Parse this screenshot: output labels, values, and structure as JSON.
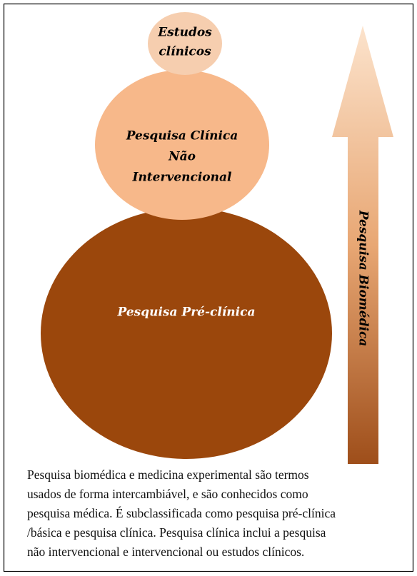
{
  "nodes": [
    {
      "label": [
        "Estudos",
        "clínicos"
      ]
    },
    {
      "label": [
        "Pesquisa Clínica",
        "Não",
        "Intervencional"
      ]
    },
    {
      "label": [
        "Pesquisa Pré-clínica"
      ]
    }
  ],
  "arrow": {
    "label": "Pesquisa Biomédica"
  },
  "caption": [
    "Pesquisa biomédica e medicina experimental são termos",
    "usados de forma intercambiável, e são conhecidos como",
    "pesquisa médica. É subclassificada como pesquisa pré-clínica",
    "/básica e pesquisa clínica. Pesquisa clínica inclui a pesquisa",
    "não intervencional e intervencional ou estudos clínicos."
  ]
}
